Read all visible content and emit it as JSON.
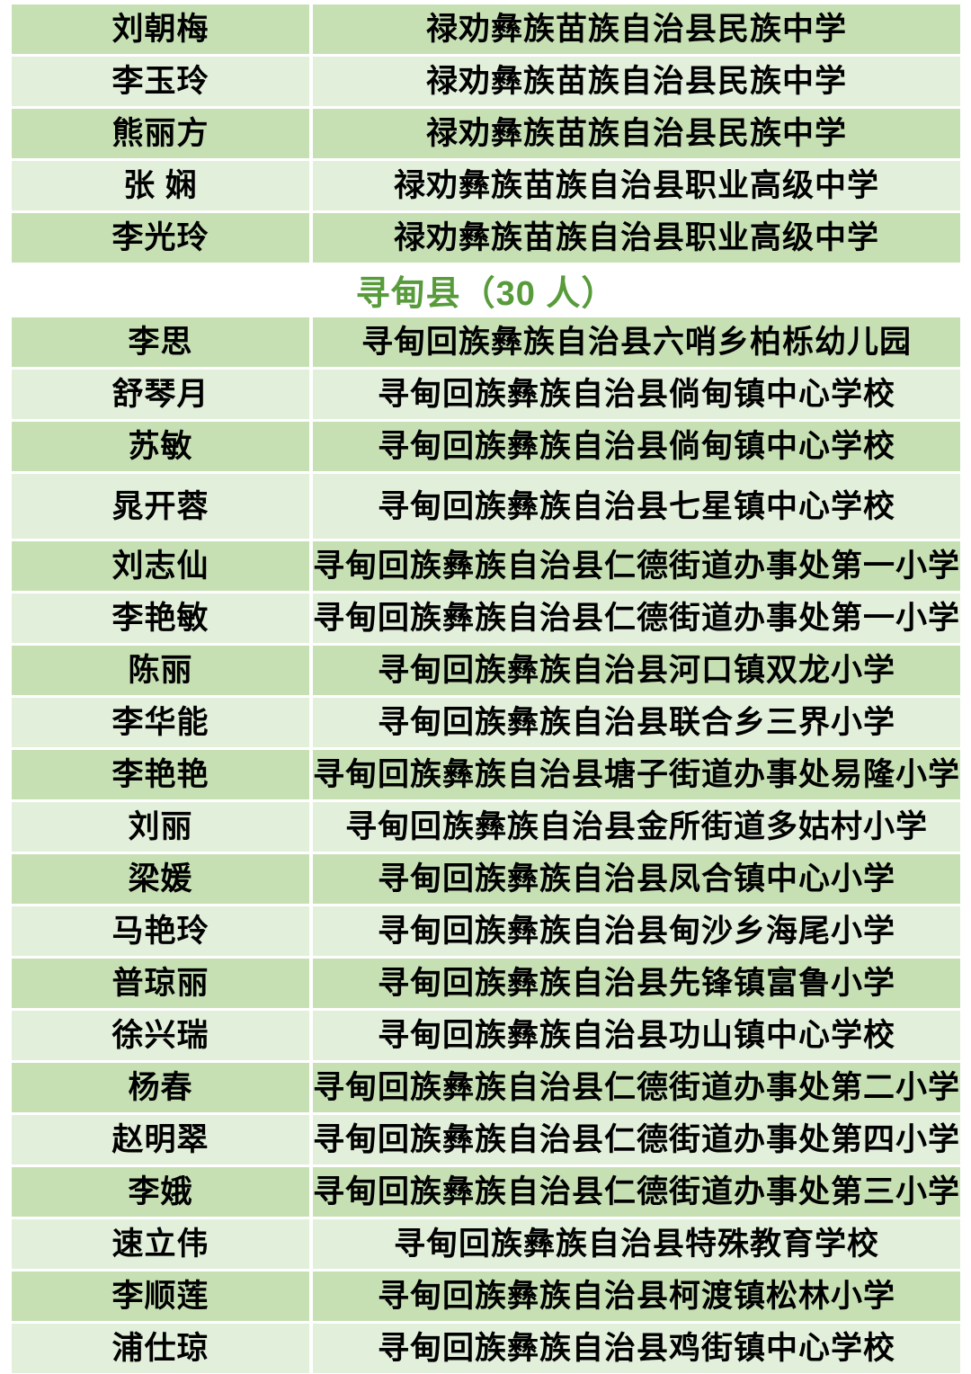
{
  "colors": {
    "page_background": "#ffffff",
    "row_dark_green": "#c6e0b4",
    "row_light_green": "#e2efda",
    "section_header_text": "#579b3b",
    "body_text": "#000000"
  },
  "table": {
    "sections": [
      {
        "header": null,
        "rows": [
          {
            "name": "刘朝梅",
            "school": "禄劝彝族苗族自治县民族中学"
          },
          {
            "name": "李玉玲",
            "school": "禄劝彝族苗族自治县民族中学"
          },
          {
            "name": "熊丽方",
            "school": "禄劝彝族苗族自治县民族中学"
          },
          {
            "name": "张 娴",
            "school": "禄劝彝族苗族自治县职业高级中学"
          },
          {
            "name": "李光玲",
            "school": "禄劝彝族苗族自治县职业高级中学"
          }
        ]
      },
      {
        "header": "寻甸县（30 人）",
        "rows": [
          {
            "name": "李思",
            "school": "寻甸回族彝族自治县六哨乡柏栎幼儿园"
          },
          {
            "name": "舒琴月",
            "school": "寻甸回族彝族自治县倘甸镇中心学校"
          },
          {
            "name": "苏敏",
            "school": "寻甸回族彝族自治县倘甸镇中心学校"
          },
          {
            "name": "晁开蓉",
            "school": "寻甸回族彝族自治县七星镇中心学校",
            "tall": true
          },
          {
            "name": "刘志仙",
            "school": "寻甸回族彝族自治县仁德街道办事处第一小学"
          },
          {
            "name": "李艳敏",
            "school": "寻甸回族彝族自治县仁德街道办事处第一小学"
          },
          {
            "name": "陈丽",
            "school": "寻甸回族彝族自治县河口镇双龙小学"
          },
          {
            "name": "李华能",
            "school": "寻甸回族彝族自治县联合乡三界小学"
          },
          {
            "name": "李艳艳",
            "school": "寻甸回族彝族自治县塘子街道办事处易隆小学"
          },
          {
            "name": "刘丽",
            "school": "寻甸回族彝族自治县金所街道多姑村小学"
          },
          {
            "name": "梁媛",
            "school": "寻甸回族彝族自治县凤合镇中心小学"
          },
          {
            "name": "马艳玲",
            "school": "寻甸回族彝族自治县甸沙乡海尾小学"
          },
          {
            "name": "普琼丽",
            "school": "寻甸回族彝族自治县先锋镇富鲁小学"
          },
          {
            "name": "徐兴瑞",
            "school": "寻甸回族彝族自治县功山镇中心学校"
          },
          {
            "name": "杨春",
            "school": "寻甸回族彝族自治县仁德街道办事处第二小学"
          },
          {
            "name": "赵明翠",
            "school": "寻甸回族彝族自治县仁德街道办事处第四小学"
          },
          {
            "name": "李娥",
            "school": "寻甸回族彝族自治县仁德街道办事处第三小学"
          },
          {
            "name": "速立伟",
            "school": "寻甸回族彝族自治县特殊教育学校"
          },
          {
            "name": "李顺莲",
            "school": "寻甸回族彝族自治县柯渡镇松林小学"
          },
          {
            "name": "浦仕琼",
            "school": "寻甸回族彝族自治县鸡街镇中心学校"
          }
        ]
      }
    ]
  }
}
